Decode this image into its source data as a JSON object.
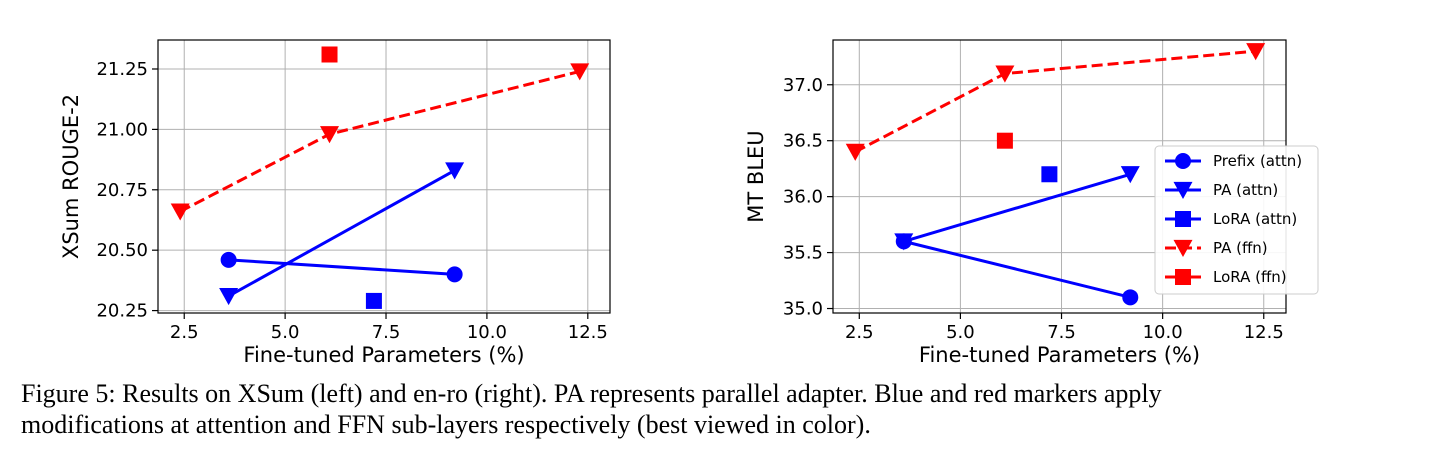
{
  "chart_data": [
    {
      "type": "line",
      "xlabel": "Fine-tuned Parameters (%)",
      "ylabel": "XSum ROUGE-2",
      "xlim": [
        1.85,
        13.05
      ],
      "ylim": [
        20.24,
        21.37
      ],
      "xticks": [
        2.5,
        5.0,
        7.5,
        10.0,
        12.5
      ],
      "xtick_labels": [
        "2.5",
        "5.0",
        "7.5",
        "10.0",
        "12.5"
      ],
      "yticks": [
        20.25,
        20.5,
        20.75,
        21.0,
        21.25
      ],
      "ytick_labels": [
        "20.25",
        "20.50",
        "20.75",
        "21.00",
        "21.25"
      ],
      "grid": true,
      "legend": null,
      "series": [
        {
          "name": "Prefix (attn)",
          "color": "#0000ff",
          "marker": "circle",
          "line": "solid",
          "points": [
            [
              3.6,
              20.46
            ],
            [
              9.2,
              20.4
            ]
          ]
        },
        {
          "name": "PA (attn)",
          "color": "#0000ff",
          "marker": "triangle-down",
          "line": "solid",
          "points": [
            [
              3.6,
              20.31
            ],
            [
              9.2,
              20.83
            ]
          ]
        },
        {
          "name": "LoRA (attn)",
          "color": "#0000ff",
          "marker": "square",
          "line": "none",
          "points": [
            [
              7.2,
              20.29
            ]
          ]
        },
        {
          "name": "PA (ffn)",
          "color": "#ff0000",
          "marker": "triangle-down",
          "line": "dashed",
          "points": [
            [
              2.4,
              20.66
            ],
            [
              6.1,
              20.98
            ],
            [
              12.3,
              21.24
            ]
          ]
        },
        {
          "name": "LoRA (ffn)",
          "color": "#ff0000",
          "marker": "square",
          "line": "none",
          "points": [
            [
              6.1,
              21.31
            ]
          ]
        }
      ]
    },
    {
      "type": "line",
      "xlabel": "Fine-tuned Parameters (%)",
      "ylabel": "MT BLEU",
      "xlim": [
        1.85,
        13.05
      ],
      "ylim": [
        34.96,
        37.4
      ],
      "xticks": [
        2.5,
        5.0,
        7.5,
        10.0,
        12.5
      ],
      "xtick_labels": [
        "2.5",
        "5.0",
        "7.5",
        "10.0",
        "12.5"
      ],
      "yticks": [
        35.0,
        35.5,
        36.0,
        36.5,
        37.0
      ],
      "ytick_labels": [
        "35.0",
        "35.5",
        "36.0",
        "36.5",
        "37.0"
      ],
      "grid": true,
      "legend": "lower-right",
      "series": [
        {
          "name": "Prefix (attn)",
          "color": "#0000ff",
          "marker": "circle",
          "line": "solid",
          "points": [
            [
              3.6,
              35.6
            ],
            [
              9.2,
              35.1
            ]
          ]
        },
        {
          "name": "PA (attn)",
          "color": "#0000ff",
          "marker": "triangle-down",
          "line": "solid",
          "points": [
            [
              3.6,
              35.6
            ],
            [
              9.2,
              36.2
            ]
          ]
        },
        {
          "name": "LoRA (attn)",
          "color": "#0000ff",
          "marker": "square",
          "line": "none",
          "points": [
            [
              7.2,
              36.2
            ]
          ]
        },
        {
          "name": "PA (ffn)",
          "color": "#ff0000",
          "marker": "triangle-down",
          "line": "dashed",
          "points": [
            [
              2.4,
              36.4
            ],
            [
              6.1,
              37.1
            ],
            [
              12.3,
              37.3
            ]
          ]
        },
        {
          "name": "LoRA (ffn)",
          "color": "#ff0000",
          "marker": "square",
          "line": "none",
          "points": [
            [
              6.1,
              36.5
            ]
          ]
        }
      ]
    }
  ],
  "caption": {
    "line1": "Figure 5: Results on XSum (left) and en-ro (right). PA represents parallel adapter. Blue and red markers apply",
    "line2": "modifications at attention and FFN sub-layers respectively (best viewed in color)."
  }
}
